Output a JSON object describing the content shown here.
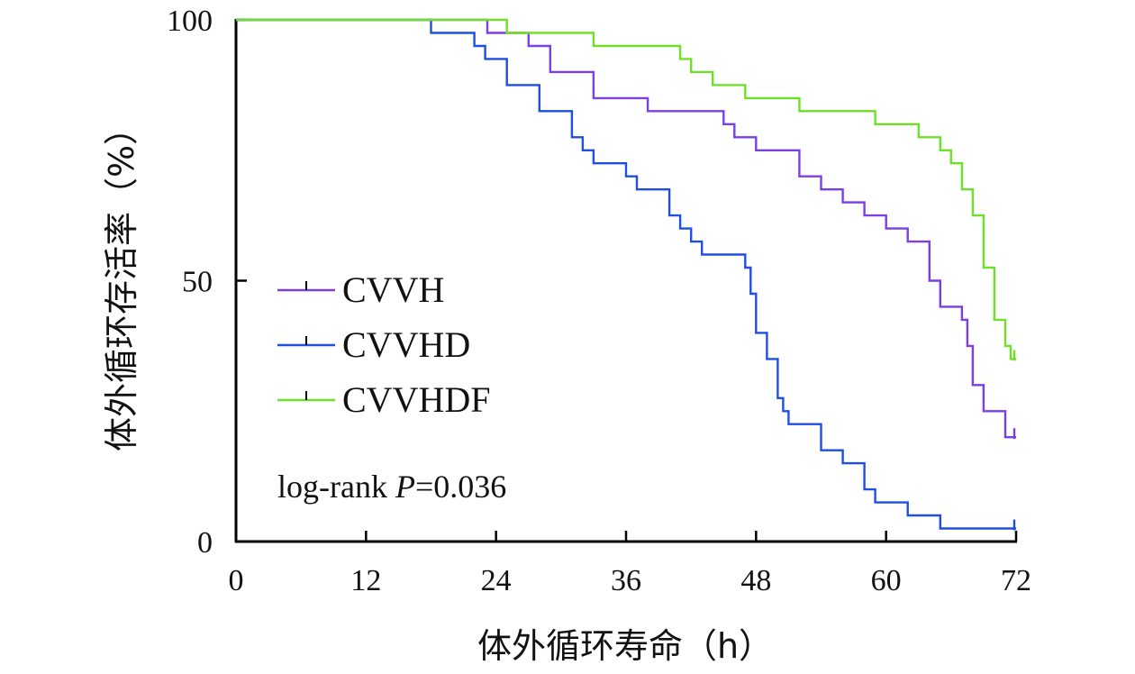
{
  "chart_data": {
    "type": "line",
    "title": "",
    "xlabel": "体外循环寿命（h）",
    "ylabel": "体外循环存活率（%）",
    "xlim": [
      0,
      72
    ],
    "ylim": [
      0,
      100
    ],
    "x_ticks": [
      "0",
      "12",
      "24",
      "36",
      "48",
      "60",
      "72"
    ],
    "y_ticks": [
      "0",
      "50",
      "100"
    ],
    "grid": false,
    "legend_position": "center-left",
    "annotation": {
      "prefix": "log-rank ",
      "p_symbol": "P",
      "value_text": "=0.036"
    },
    "series": [
      {
        "name": "CVVH",
        "color": "#7B3FE4",
        "points": [
          [
            0,
            100
          ],
          [
            23.2,
            100
          ],
          [
            23.2,
            97.5
          ],
          [
            27,
            97.5
          ],
          [
            27,
            95
          ],
          [
            29,
            95
          ],
          [
            29,
            90
          ],
          [
            33,
            90
          ],
          [
            33,
            85
          ],
          [
            38,
            85
          ],
          [
            38,
            82.5
          ],
          [
            45,
            82.5
          ],
          [
            45,
            80
          ],
          [
            46,
            80
          ],
          [
            46,
            77.5
          ],
          [
            48,
            77.5
          ],
          [
            48,
            75
          ],
          [
            52,
            75
          ],
          [
            52,
            70
          ],
          [
            54,
            70
          ],
          [
            54,
            67.5
          ],
          [
            56,
            67.5
          ],
          [
            56,
            65
          ],
          [
            58,
            65
          ],
          [
            58,
            62.5
          ],
          [
            60,
            62.5
          ],
          [
            60,
            60
          ],
          [
            62,
            60
          ],
          [
            62,
            57.5
          ],
          [
            64,
            57.5
          ],
          [
            64,
            50
          ],
          [
            65,
            50
          ],
          [
            65,
            45
          ],
          [
            67,
            45
          ],
          [
            67,
            42.5
          ],
          [
            67.5,
            42.5
          ],
          [
            67.5,
            37.5
          ],
          [
            68,
            37.5
          ],
          [
            68,
            30
          ],
          [
            69,
            30
          ],
          [
            69,
            25
          ],
          [
            71,
            25
          ],
          [
            71,
            20
          ],
          [
            72,
            20
          ]
        ],
        "censor_x": [
          72
        ]
      },
      {
        "name": "CVVHD",
        "color": "#1F4FE0",
        "points": [
          [
            0,
            100
          ],
          [
            18,
            100
          ],
          [
            18,
            97.5
          ],
          [
            22,
            97.5
          ],
          [
            22,
            95
          ],
          [
            23,
            95
          ],
          [
            23,
            92.5
          ],
          [
            25,
            92.5
          ],
          [
            25,
            87.5
          ],
          [
            28,
            87.5
          ],
          [
            28,
            82.5
          ],
          [
            31,
            82.5
          ],
          [
            31,
            77.5
          ],
          [
            32,
            77.5
          ],
          [
            32,
            75
          ],
          [
            33,
            75
          ],
          [
            33,
            72.5
          ],
          [
            36,
            72.5
          ],
          [
            36,
            70
          ],
          [
            37,
            70
          ],
          [
            37,
            67.5
          ],
          [
            40,
            67.5
          ],
          [
            40,
            62.5
          ],
          [
            41,
            62.5
          ],
          [
            41,
            60
          ],
          [
            42,
            60
          ],
          [
            42,
            57.5
          ],
          [
            43,
            57.5
          ],
          [
            43,
            55
          ],
          [
            47,
            55
          ],
          [
            47,
            52.5
          ],
          [
            47.5,
            52.5
          ],
          [
            47.5,
            47.5
          ],
          [
            48,
            47.5
          ],
          [
            48,
            40
          ],
          [
            49,
            40
          ],
          [
            49,
            35
          ],
          [
            50,
            35
          ],
          [
            50,
            27.5
          ],
          [
            50.5,
            27.5
          ],
          [
            50.5,
            25
          ],
          [
            51,
            25
          ],
          [
            51,
            22.5
          ],
          [
            54,
            22.5
          ],
          [
            54,
            17.5
          ],
          [
            56,
            17.5
          ],
          [
            56,
            15
          ],
          [
            58,
            15
          ],
          [
            58,
            10
          ],
          [
            59,
            10
          ],
          [
            59,
            7.5
          ],
          [
            62,
            7.5
          ],
          [
            62,
            5
          ],
          [
            65,
            5
          ],
          [
            65,
            2.5
          ],
          [
            72,
            2.5
          ]
        ],
        "censor_x": [
          72
        ]
      },
      {
        "name": "CVVHDF",
        "color": "#6FE02A",
        "points": [
          [
            0,
            100
          ],
          [
            25,
            100
          ],
          [
            25,
            97.5
          ],
          [
            33,
            97.5
          ],
          [
            33,
            95
          ],
          [
            41,
            95
          ],
          [
            41,
            92.5
          ],
          [
            42,
            92.5
          ],
          [
            42,
            90
          ],
          [
            44,
            90
          ],
          [
            44,
            87.5
          ],
          [
            47,
            87.5
          ],
          [
            47,
            85
          ],
          [
            52,
            85
          ],
          [
            52,
            82.5
          ],
          [
            59,
            82.5
          ],
          [
            59,
            80
          ],
          [
            63,
            80
          ],
          [
            63,
            77.5
          ],
          [
            65,
            77.5
          ],
          [
            65,
            75
          ],
          [
            66,
            75
          ],
          [
            66,
            72.5
          ],
          [
            67,
            72.5
          ],
          [
            67,
            67.5
          ],
          [
            68,
            67.5
          ],
          [
            68,
            62.5
          ],
          [
            69,
            62.5
          ],
          [
            69,
            52.5
          ],
          [
            70,
            52.5
          ],
          [
            70,
            42.5
          ],
          [
            71,
            42.5
          ],
          [
            71,
            37.5
          ],
          [
            71.5,
            37.5
          ],
          [
            71.5,
            35
          ],
          [
            72,
            35
          ]
        ],
        "censor_x": [
          72
        ]
      }
    ]
  }
}
